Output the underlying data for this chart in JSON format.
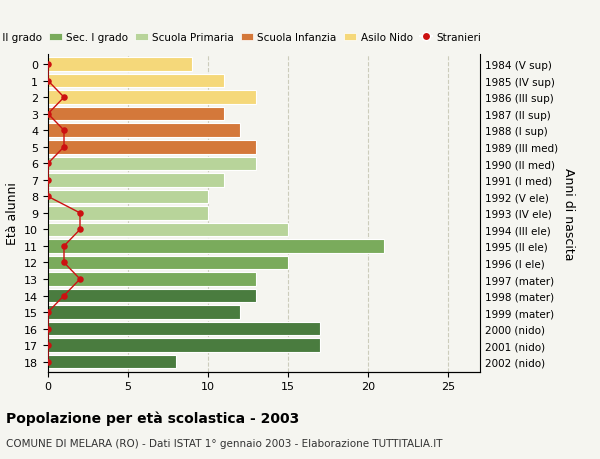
{
  "ages": [
    18,
    17,
    16,
    15,
    14,
    13,
    12,
    11,
    10,
    9,
    8,
    7,
    6,
    5,
    4,
    3,
    2,
    1,
    0
  ],
  "bar_values": [
    8,
    17,
    17,
    12,
    13,
    13,
    15,
    21,
    15,
    10,
    10,
    11,
    13,
    13,
    12,
    11,
    13,
    11,
    9
  ],
  "stranieri_x": [
    0,
    0,
    0,
    0,
    1,
    2,
    1,
    1,
    2,
    2,
    0,
    0,
    0,
    1,
    1,
    0,
    1,
    0,
    0
  ],
  "right_labels": [
    "1984 (V sup)",
    "1985 (IV sup)",
    "1986 (III sup)",
    "1987 (II sup)",
    "1988 (I sup)",
    "1989 (III med)",
    "1990 (II med)",
    "1991 (I med)",
    "1992 (V ele)",
    "1993 (IV ele)",
    "1994 (III ele)",
    "1995 (II ele)",
    "1996 (I ele)",
    "1997 (mater)",
    "1998 (mater)",
    "1999 (mater)",
    "2000 (nido)",
    "2001 (nido)",
    "2002 (nido)"
  ],
  "bar_colors": [
    "#4a7c3f",
    "#4a7c3f",
    "#4a7c3f",
    "#4a7c3f",
    "#4a7c3f",
    "#7aab5c",
    "#7aab5c",
    "#7aab5c",
    "#b8d49a",
    "#b8d49a",
    "#b8d49a",
    "#b8d49a",
    "#b8d49a",
    "#d4783a",
    "#d4783a",
    "#d4783a",
    "#f5d87a",
    "#f5d87a",
    "#f5d87a"
  ],
  "legend_labels": [
    "Sec. II grado",
    "Sec. I grado",
    "Scuola Primaria",
    "Scuola Infanzia",
    "Asilo Nido",
    "Stranieri"
  ],
  "legend_colors": [
    "#4a7c3f",
    "#7aab5c",
    "#b8d49a",
    "#d4783a",
    "#f5d87a",
    "#cc1111"
  ],
  "ylabel": "Età alunni",
  "right_ylabel": "Anni di nascita",
  "xlim": [
    0,
    27
  ],
  "xticks": [
    0,
    5,
    10,
    15,
    20,
    25
  ],
  "title": "Popolazione per età scolastica - 2003",
  "subtitle": "COMUNE DI MELARA (RO) - Dati ISTAT 1° gennaio 2003 - Elaborazione TUTTITALIA.IT",
  "bg_color": "#f5f5f0",
  "grid_color": "#ccccbb",
  "stranieri_color": "#cc1111"
}
